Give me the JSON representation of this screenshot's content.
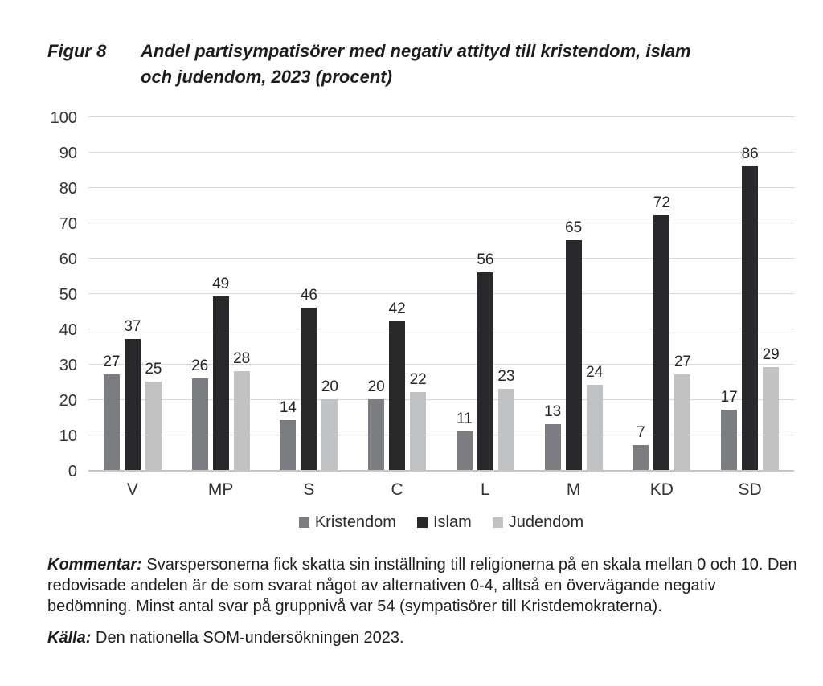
{
  "figure": {
    "label": "Figur 8",
    "title_line1": "Andel partisympatisörer med negativ attityd till kristendom, islam",
    "title_line2": "och judendom, 2023 (procent)"
  },
  "chart_data": {
    "type": "bar",
    "title": "Andel partisympatisörer med negativ attityd till kristendom, islam och judendom, 2023 (procent)",
    "categories": [
      "V",
      "MP",
      "S",
      "C",
      "L",
      "M",
      "KD",
      "SD"
    ],
    "series": [
      {
        "name": "Kristendom",
        "color": "#7c7d80",
        "values": [
          27,
          26,
          14,
          20,
          11,
          13,
          7,
          17
        ]
      },
      {
        "name": "Islam",
        "color": "#29292b",
        "values": [
          37,
          49,
          46,
          42,
          56,
          65,
          72,
          86
        ]
      },
      {
        "name": "Judendom",
        "color": "#c1c2c4",
        "values": [
          25,
          28,
          20,
          22,
          23,
          24,
          27,
          29
        ]
      }
    ],
    "xlabel": "",
    "ylabel": "",
    "ylim": [
      0,
      100
    ],
    "ytick_step": 10,
    "grid": true,
    "value_labels": true,
    "legend_position": "bottom"
  },
  "notes": {
    "kommentar_label": "Kommentar:",
    "kommentar_text": " Svarspersonerna fick skatta sin inställning till religionerna på en skala mellan 0 och 10. Den redovisade andelen är de som svarat något av alternativen 0-4, alltså en övervägande negativ bedömning. Minst antal svar på gruppnivå var 54 (sympatisörer till Kristdemokraterna).",
    "kalla_label": "Källa:",
    "kalla_text": " Den nationella SOM-undersökningen 2023."
  }
}
